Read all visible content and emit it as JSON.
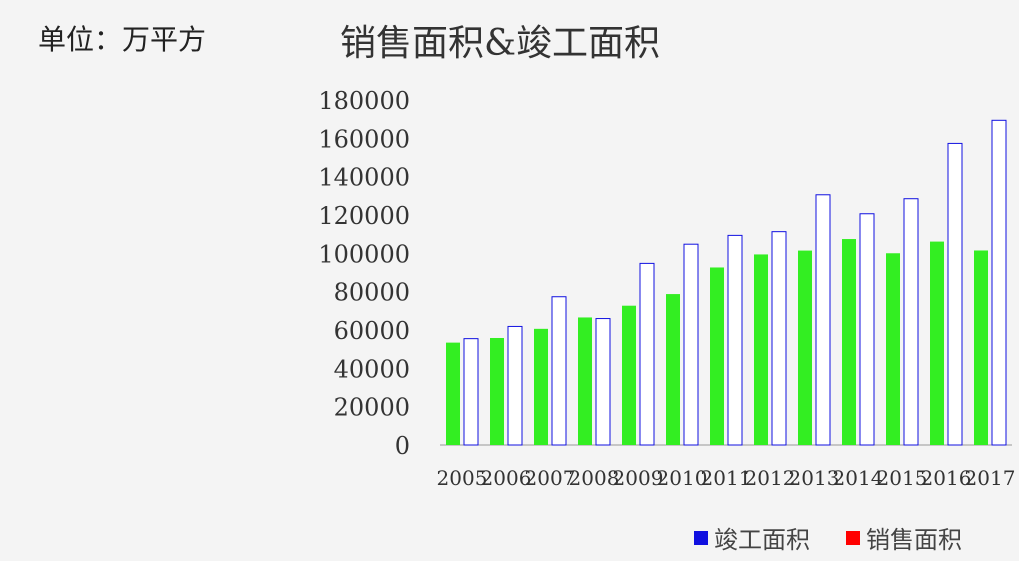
{
  "header": {
    "unit": "单位：万平方",
    "title": "销售面积&竣工面积"
  },
  "colors": {
    "completed": "#1010e0",
    "sales": "#ff0000",
    "bar_fill": "#33ee22"
  },
  "chart_data": {
    "type": "bar",
    "title": "销售面积&竣工面积",
    "ylabel": "单位：万平方",
    "ylim": [
      0,
      180000
    ],
    "yticks": [
      0,
      20000,
      40000,
      60000,
      80000,
      100000,
      120000,
      140000,
      160000,
      180000
    ],
    "categories": [
      "2005",
      "2006",
      "2007",
      "2008",
      "2009",
      "2010",
      "2011",
      "2012",
      "2013",
      "2014",
      "2015",
      "2016",
      "2017"
    ],
    "series": [
      {
        "name": "竣工面积",
        "values": [
          53417,
          55831,
          60607,
          66545,
          72677,
          78743,
          92620,
          99425,
          101435,
          107459,
          100039,
          106128,
          101486
        ]
      },
      {
        "name": "销售面积",
        "values": [
          55486,
          61857,
          77355,
          65970,
          94755,
          104765,
          109367,
          111304,
          130551,
          120649,
          128495,
          157349,
          169408
        ]
      }
    ],
    "legend": [
      "竣工面积",
      "销售面积"
    ],
    "legend_position": "bottom-right",
    "grid": false
  }
}
